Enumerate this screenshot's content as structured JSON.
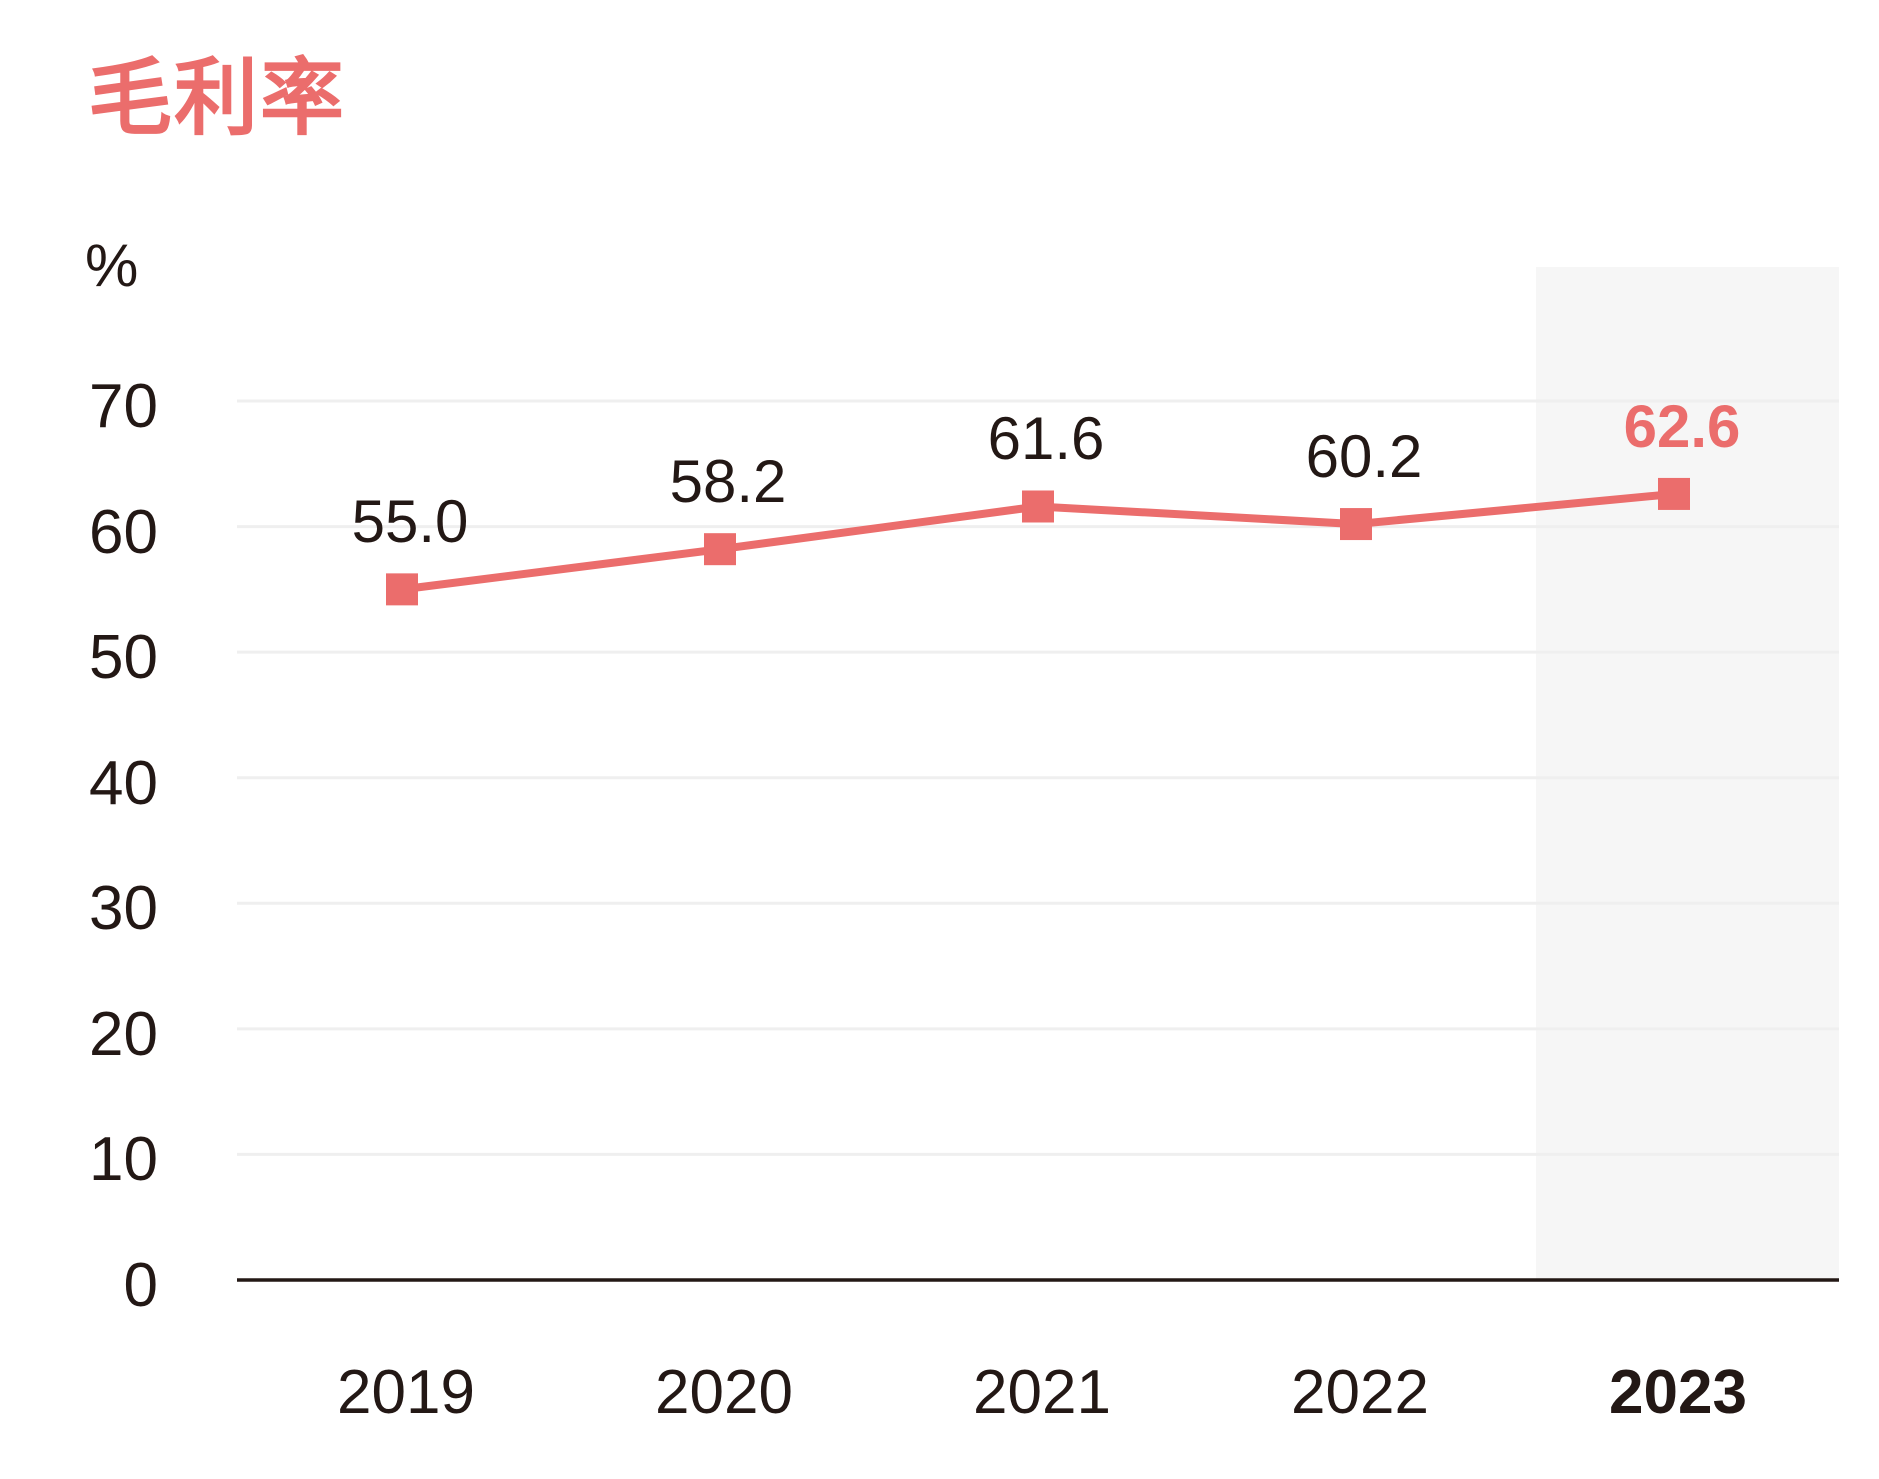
{
  "chart_data": {
    "type": "line",
    "title": "毛利率",
    "unit": "%",
    "categories": [
      "2019",
      "2020",
      "2021",
      "2022",
      "2023"
    ],
    "values": [
      55.0,
      58.2,
      61.6,
      60.2,
      62.6
    ],
    "data_labels": [
      "55.0",
      "58.2",
      "61.6",
      "60.2",
      "62.6"
    ],
    "series_name": "毛利率",
    "y_ticks": [
      0,
      10,
      20,
      30,
      40,
      50,
      60,
      70
    ],
    "ylim": [
      0,
      78
    ],
    "grid": "horizontal",
    "legend": "none",
    "marker": "square",
    "highlighted_category": "2023",
    "colors": {
      "series": "#EB6D6C",
      "title": "#EB6D6C",
      "accent_label": "#EB6D6C",
      "text_dark": "#231815",
      "gridline": "#EFEFEF",
      "axis_line": "#231815",
      "highlight_band": "#F6F6F6"
    }
  }
}
